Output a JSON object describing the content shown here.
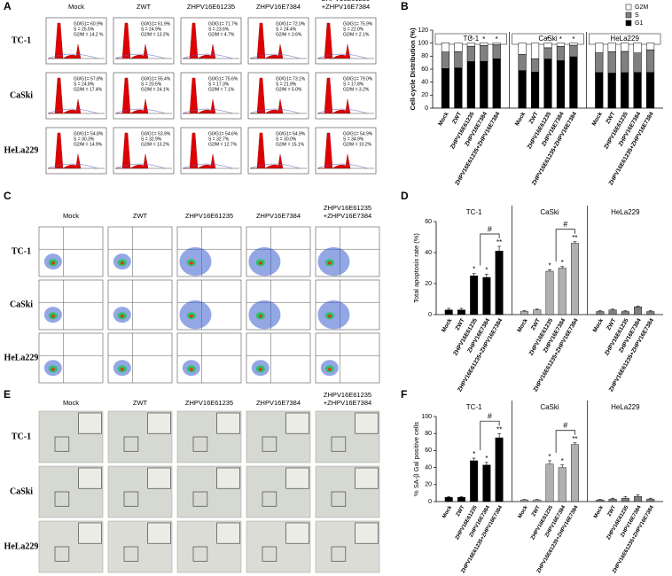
{
  "rows": [
    "TC-1",
    "CaSki",
    "HeLa229"
  ],
  "columns": [
    [
      "Mock"
    ],
    [
      "ZWT"
    ],
    [
      "ZHPV16E61235"
    ],
    [
      "ZHPV16E7384"
    ],
    [
      "ZHPV16E61235",
      "+ZHPV16E7384"
    ]
  ],
  "panel_labels": [
    "A",
    "B",
    "C",
    "D",
    "E",
    "F"
  ],
  "panel_a_stats": [
    [
      [
        "G0/G1= 60.9%",
        "S = 25.5%",
        "G2/M = 14.2 %"
      ],
      [
        "G0/G1= 61.9%",
        "S = 24.9%",
        "G2/M = 13.2%"
      ],
      [
        "G0/G1= 71.7%",
        "S = 23.6%",
        "G2/M = 4.7%"
      ],
      [
        "G0/G1= 72.0%",
        "S = 24.4%",
        "G2/M = 3.6%"
      ],
      [
        "G0/G1= 75.9%",
        "S = 22.0%",
        "G2/M = 2.1%"
      ]
    ],
    [
      [
        "G0/G1= 57.8%",
        "S = 24.8%",
        "G2/M = 17.4%"
      ],
      [
        "G0/G1= 55.4%",
        "S = 20.5%",
        "G2/M = 24.1%"
      ],
      [
        "G0/G1= 75.6%",
        "S = 17.3%",
        "G2/M = 7.1%"
      ],
      [
        "G0/G1= 73.1%",
        "S = 21.9%",
        "G2/M = 5.0%"
      ],
      [
        "G0/G1= 79.0%",
        "S = 17.8%",
        "G2/M = 3.2%"
      ]
    ],
    [
      [
        "G0/G1= 54.8%",
        "S = 30.3%",
        "G2/M = 14.9%"
      ],
      [
        "G0/G1= 53.9%",
        "S = 32.9%",
        "G2/M = 13.2%"
      ],
      [
        "G0/G1= 54.6%",
        "S = 32.7%",
        "G2/M = 12.7%"
      ],
      [
        "G0/G1= 54.9%",
        "S = 30.0%",
        "G2/M = 15.1%"
      ],
      [
        "G0/G1= 54.9%",
        "S = 34.9%",
        "G2/M = 10.2%"
      ]
    ]
  ],
  "chart_data": [
    {
      "type": "bar",
      "stacked": true,
      "ylabel": "Cell-cycle Distribution (%)",
      "ylim": [
        0,
        120
      ],
      "yticks": [
        0,
        20,
        40,
        60,
        80,
        100,
        120
      ],
      "groups": [
        "TC-1",
        "CaSki",
        "HeLa229"
      ],
      "categories": [
        "Mock",
        "ZWT",
        "ZHPV16E61235",
        "ZHPV16E7384",
        "ZHPV16E61235+ZHPV16E7384",
        "Mock",
        "ZWT",
        "ZHPV16E61235",
        "ZHPV16E7384",
        "ZHPV16E61235+ZHPV16E7384",
        "Mock",
        "ZWT",
        "ZHPV16E61235",
        "ZHPV16E7384",
        "ZHPV16E61235+ZHPV16E7384"
      ],
      "series": [
        {
          "name": "G1",
          "color": "#000000",
          "values": [
            60.9,
            61.9,
            71.7,
            72.0,
            75.9,
            57.8,
            55.4,
            75.6,
            73.1,
            79.0,
            54.8,
            53.9,
            54.6,
            54.9,
            54.9
          ]
        },
        {
          "name": "S",
          "color": "#808080",
          "values": [
            25.5,
            24.9,
            23.6,
            24.4,
            22.0,
            24.8,
            20.5,
            17.3,
            21.9,
            17.8,
            30.3,
            32.9,
            32.7,
            30.0,
            34.9
          ]
        },
        {
          "name": "G2M",
          "color": "#ffffff",
          "values": [
            14.2,
            13.2,
            4.7,
            3.6,
            2.1,
            17.4,
            24.1,
            7.1,
            5.0,
            3.2,
            14.9,
            13.2,
            12.7,
            15.1,
            10.2
          ]
        }
      ],
      "markers": [
        null,
        null,
        "*",
        "*",
        "*",
        null,
        null,
        "*",
        "*",
        "*",
        null,
        null,
        null,
        null,
        null
      ]
    },
    {
      "type": "bar",
      "ylabel": "Total apoptosis rate (%)",
      "ylim": [
        0,
        60
      ],
      "yticks": [
        0,
        20,
        40,
        60
      ],
      "groups": [
        "TC-1",
        "CaSki",
        "HeLa229"
      ],
      "categories": [
        "Mock",
        "ZWT",
        "ZHPV16E61235",
        "ZHPV16E7384",
        "ZHPV16E61235+ZHPV16E7384",
        "Mock",
        "ZWT",
        "ZHPV16E61235",
        "ZHPV16E7384",
        "ZHPV16E61235+ZHPV16E7384",
        "Mock",
        "ZWT",
        "ZHPV16E61235",
        "ZHPV16E7384",
        "ZHPV16E61235+ZHPV16E7384"
      ],
      "values": [
        3,
        3,
        25,
        24,
        41,
        2,
        3,
        28,
        30,
        46,
        2,
        3,
        2,
        5,
        2
      ],
      "errors": [
        1,
        1,
        1.5,
        2,
        3,
        0.5,
        0.5,
        1,
        1,
        1,
        0.5,
        0.5,
        0.5,
        0.5,
        0.5
      ],
      "colors": [
        "#000000",
        "#000000",
        "#000000",
        "#000000",
        "#000000",
        "#b0b0b0",
        "#b0b0b0",
        "#b0b0b0",
        "#b0b0b0",
        "#b0b0b0",
        "#7f7f7f",
        "#7f7f7f",
        "#7f7f7f",
        "#7f7f7f",
        "#7f7f7f"
      ],
      "markers": [
        null,
        null,
        "*",
        "*",
        "**",
        null,
        null,
        "*",
        "*",
        "**",
        null,
        null,
        null,
        null,
        null
      ],
      "brackets": [
        {
          "from": 2,
          "to": 4,
          "label": "#"
        },
        {
          "from": 7,
          "to": 9,
          "label": "#"
        }
      ]
    },
    {
      "type": "bar",
      "ylabel": "% SA-β Gal positive cells",
      "ylim": [
        0,
        100
      ],
      "yticks": [
        0,
        20,
        40,
        60,
        80,
        100
      ],
      "groups": [
        "TC-1",
        "CaSki",
        "HeLa229"
      ],
      "categories": [
        "Mock",
        "ZWT",
        "ZHPV16E61235",
        "ZHPV16E7384",
        "ZHPV16E61235+ZHPV16E7384",
        "Mock",
        "ZWT",
        "ZHPV16E61235",
        "ZHPV16E7384",
        "ZHPV16E61235+ZHPV16E7384",
        "Mock",
        "ZWT",
        "ZHPV16E61235",
        "ZHPV16E7384",
        "ZHPV16E61235+ZHPV16E7384"
      ],
      "values": [
        5,
        5,
        48,
        43,
        75,
        2,
        2,
        44,
        40,
        67,
        2,
        3,
        4,
        6,
        3
      ],
      "errors": [
        1,
        1,
        3,
        3,
        5,
        0.5,
        0.5,
        4,
        3,
        2,
        0.5,
        1,
        2,
        2,
        1
      ],
      "colors": [
        "#000000",
        "#000000",
        "#000000",
        "#000000",
        "#000000",
        "#b0b0b0",
        "#b0b0b0",
        "#b0b0b0",
        "#b0b0b0",
        "#b0b0b0",
        "#7f7f7f",
        "#7f7f7f",
        "#7f7f7f",
        "#7f7f7f",
        "#7f7f7f"
      ],
      "markers": [
        null,
        null,
        "*",
        "*",
        "**",
        null,
        null,
        "*",
        "*",
        "**",
        null,
        null,
        null,
        null,
        null
      ],
      "brackets": [
        {
          "from": 2,
          "to": 4,
          "label": "#"
        },
        {
          "from": 7,
          "to": 9,
          "label": "#"
        }
      ]
    }
  ]
}
